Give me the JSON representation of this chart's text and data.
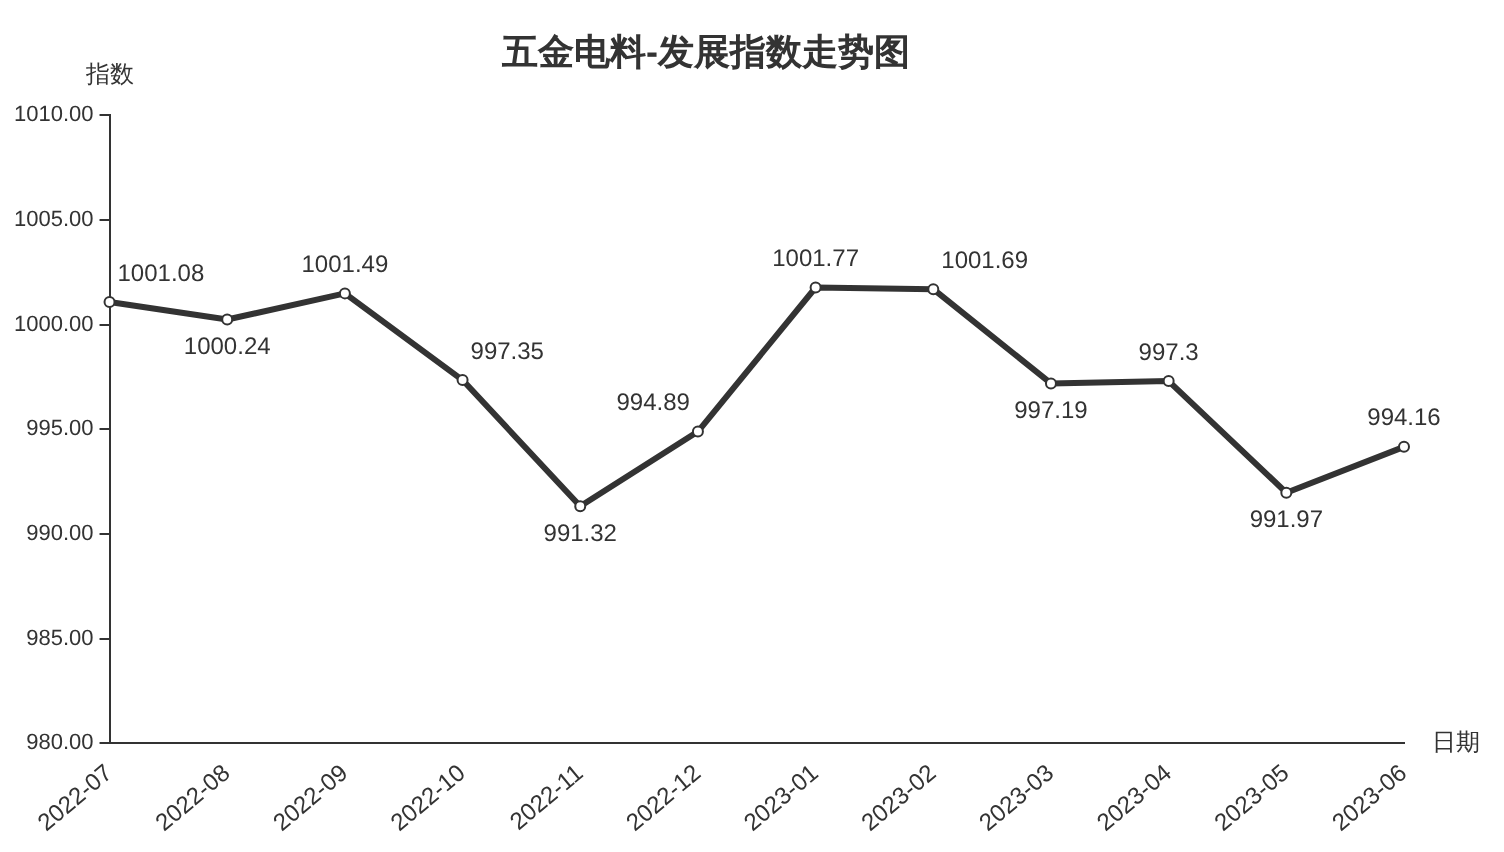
{
  "chart_data": {
    "type": "line",
    "title": "五金电料-发展指数走势图",
    "xlabel": "日期",
    "ylabel": "指数",
    "categories": [
      "2022-07",
      "2022-08",
      "2022-09",
      "2022-10",
      "2022-11",
      "2022-12",
      "2023-01",
      "2023-02",
      "2023-03",
      "2023-04",
      "2023-05",
      "2023-06"
    ],
    "series": [
      {
        "color": "#333333",
        "values": [
          1001.08,
          1000.24,
          1001.49,
          997.35,
          991.32,
          994.89,
          1001.77,
          1001.69,
          997.19,
          997.3,
          991.97,
          994.16
        ]
      }
    ],
    "ylim": [
      980,
      1010
    ],
    "yticks": [
      {
        "value": 980,
        "label": "980.00"
      },
      {
        "value": 985,
        "label": "985.00"
      },
      {
        "value": 990,
        "label": "990.00"
      },
      {
        "value": 995,
        "label": "995.00"
      },
      {
        "value": 1000,
        "label": "1000.00"
      },
      {
        "value": 1005,
        "label": "1005.00"
      },
      {
        "value": 1010,
        "label": "1010.00"
      }
    ],
    "grid": false,
    "legend": false,
    "marker": "circle",
    "line_style": "solid",
    "data_labels": true
  }
}
